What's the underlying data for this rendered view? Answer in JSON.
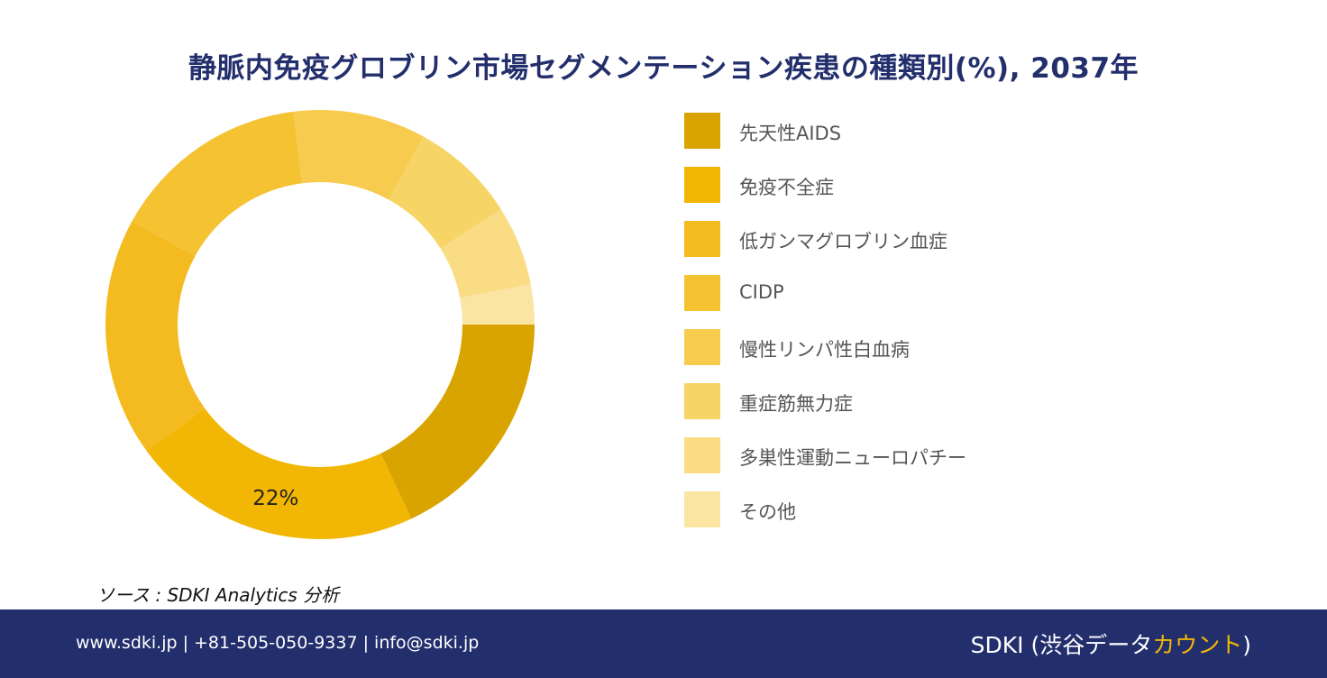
{
  "title": "静脈内免疫グロブリン市場セグメンテーション疾患の種類別(%), 2037年",
  "chart_data": {
    "type": "pie",
    "donut": true,
    "categories": [
      "先天性AIDS",
      "免疫不全症",
      "低ガンマグロブリン血症",
      "CIDP",
      "慢性リンパ性白血病",
      "重症筋無力症",
      "多巣性運動ニューロパチー",
      "その他"
    ],
    "values": [
      18,
      22,
      18,
      15,
      10,
      8,
      6,
      3
    ],
    "colors": [
      "#d9a300",
      "#f2b705",
      "#f4bb20",
      "#f5c232",
      "#f6cb4e",
      "#f7d466",
      "#f9dc83",
      "#fbe5a3"
    ],
    "data_labels": [
      "",
      "22%",
      "",
      "",
      "",
      "",
      "",
      ""
    ],
    "legend_position": "right"
  },
  "source": "ソース : SDKI Analytics  分析",
  "footer": {
    "contact": "www.sdki.jp | +81-505-050-9337 | info@sdki.jp",
    "brand_main": "SDKI (渋谷データ",
    "brand_accent": "カウント",
    "brand_close": ")"
  }
}
